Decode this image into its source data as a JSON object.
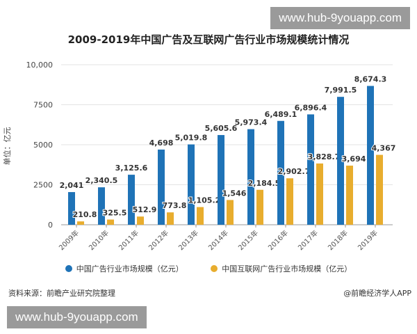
{
  "watermark": "www.hub-9youapp.com",
  "source": "资料来源：前瞻产业研究院整理",
  "credit": "@前瞻经济学人APP",
  "chart_data": {
    "type": "bar",
    "title": "2009-2019年中国广告及互联网广告行业市场规模统计情况",
    "ylabel": "单位：亿元",
    "xlabel": "",
    "ylim": [
      0,
      10000
    ],
    "yticks": [
      0,
      2500,
      5000,
      7500,
      10000
    ],
    "ytick_labels": [
      "0",
      "2500",
      "5000",
      "7500",
      "10,000"
    ],
    "grid": true,
    "legend_position": "bottom",
    "categories": [
      "2009年",
      "2010年",
      "2011年",
      "2012年",
      "2013年",
      "2014年",
      "2015年",
      "2016年",
      "2017年",
      "2018年",
      "2019年"
    ],
    "series": [
      {
        "name": "中国广告行业市场规模（亿元）",
        "color": "#1f73b7",
        "values": [
          2041,
          2340.5,
          3125.6,
          4698,
          5019.8,
          5605.6,
          5973.4,
          6489.1,
          6896.4,
          7991.5,
          8674.3
        ],
        "labels": [
          "2,041",
          "2,340.5",
          "3,125.6",
          "4,698",
          "5,019.8",
          "5,605.6",
          "5,973.4",
          "6,489.1",
          "6,896.4",
          "7,991.5",
          "8,674.3"
        ]
      },
      {
        "name": "中国互联网广告行业市场规模（亿元）",
        "color": "#e8ad2e",
        "values": [
          210.8,
          325.5,
          512.9,
          773.8,
          1105.2,
          1546,
          2184.5,
          2902.7,
          3828.7,
          3694,
          4367
        ],
        "labels": [
          "210.8",
          "325.5",
          "512.9",
          "773.8",
          "1,105.2",
          "1,546",
          "2,184.5",
          "2,902.7",
          "3,828.7",
          "3,694",
          "4,367"
        ]
      }
    ]
  }
}
